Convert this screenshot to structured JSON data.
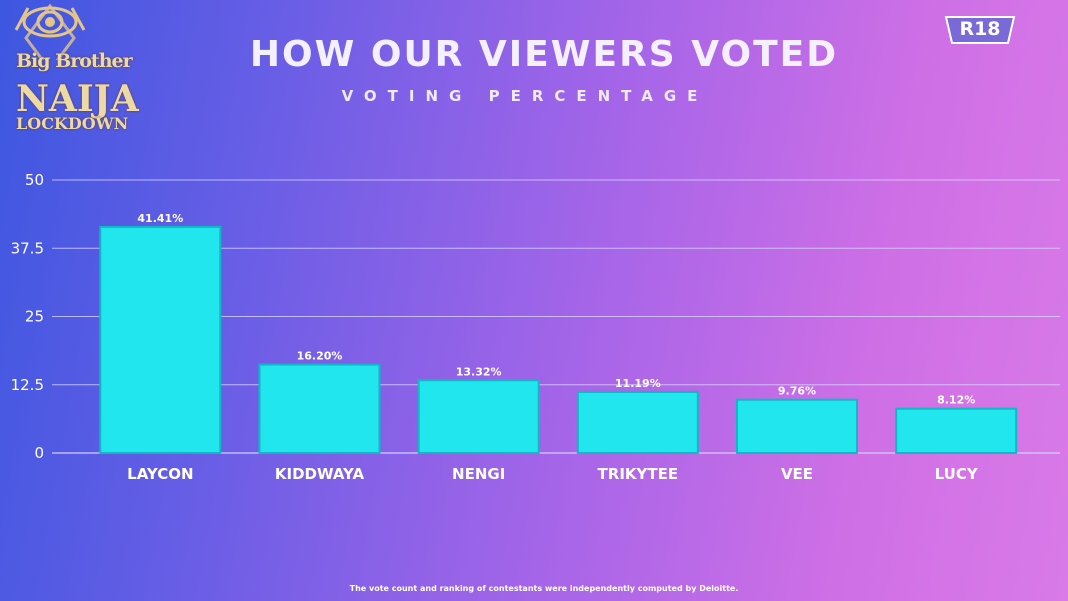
{
  "logo": {
    "line1": "Big Brother",
    "line2": "NAIJA",
    "line3": "LOCKDOWN"
  },
  "header": {
    "title": "HOW OUR VIEWERS VOTED",
    "subtitle": "VOTING PERCENTAGE"
  },
  "rating_badge": "R18",
  "footnote": "The vote count and ranking of contestants were independently computed by Deloitte.",
  "colors": {
    "bar_fill": "#22e6ee",
    "bar_stroke": "#0fb8c4",
    "gridline": "#d8d2ff",
    "text": "#ffffff"
  },
  "chart_data": {
    "type": "bar",
    "title": "HOW OUR VIEWERS VOTED",
    "subtitle": "VOTING PERCENTAGE",
    "categories": [
      "LAYCON",
      "KIDDWAYA",
      "NENGI",
      "TRIKYTEE",
      "VEE",
      "LUCY"
    ],
    "values": [
      41.41,
      16.2,
      13.32,
      11.19,
      9.76,
      8.12
    ],
    "data_labels": [
      "41.41%",
      "16.20%",
      "13.32%",
      "11.19%",
      "9.76%",
      "8.12%"
    ],
    "y_ticks": [
      0,
      12.5,
      25,
      37.5,
      50
    ],
    "y_tick_labels": [
      "0",
      "12.5",
      "25",
      "37.5",
      "50"
    ],
    "ylim": [
      0,
      50
    ],
    "xlabel": "",
    "ylabel": "",
    "grid": true
  }
}
